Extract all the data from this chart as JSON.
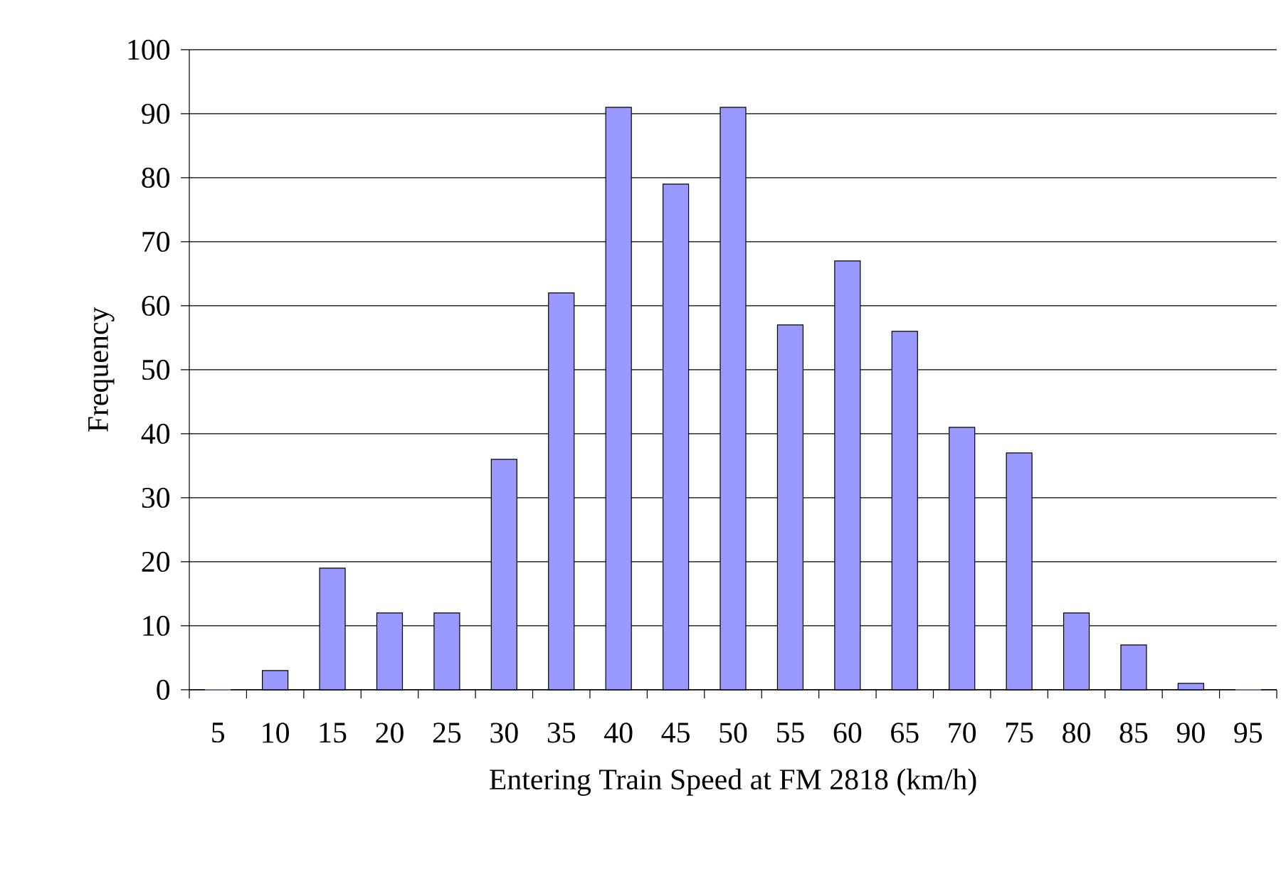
{
  "chart_data": {
    "type": "bar",
    "xlabel": "Entering Train Speed at FM 2818 (km/h)",
    "ylabel": "Frequency",
    "categories": [
      "5",
      "10",
      "15",
      "20",
      "25",
      "30",
      "35",
      "40",
      "45",
      "50",
      "55",
      "60",
      "65",
      "70",
      "75",
      "80",
      "85",
      "90",
      "95"
    ],
    "values": [
      0,
      3,
      19,
      12,
      12,
      36,
      62,
      91,
      79,
      91,
      57,
      67,
      56,
      41,
      37,
      12,
      7,
      1,
      0
    ],
    "color": "#9999ff",
    "ylim": [
      0,
      100
    ],
    "yticks": [
      0,
      10,
      20,
      30,
      40,
      50,
      60,
      70,
      80,
      90,
      100
    ],
    "grid": "y"
  }
}
